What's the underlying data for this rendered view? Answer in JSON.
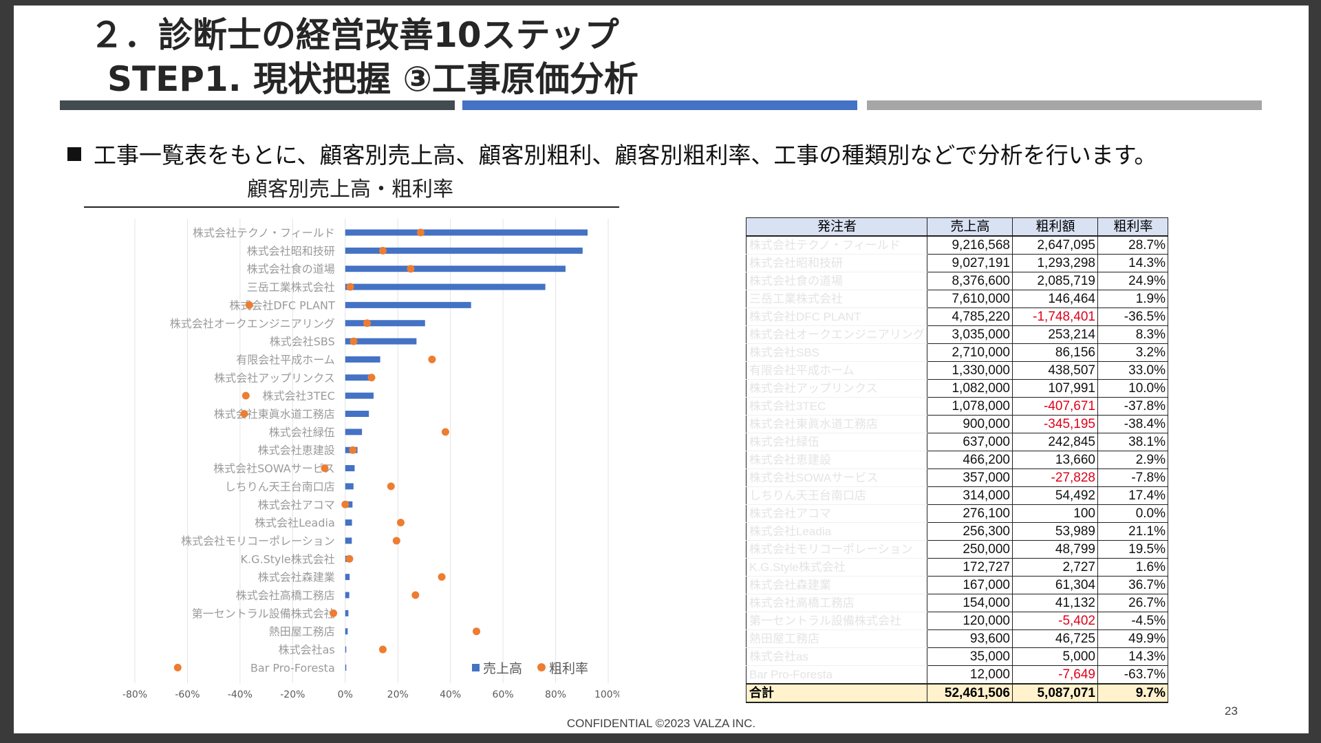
{
  "header": {
    "title_line1": "２．診断士の経営改善10ステップ",
    "title_line2": "STEP1. 現状把握 ③工事原価分析"
  },
  "colors": {
    "bar_dark": "#414b50",
    "bar_blue": "#4472c4",
    "bar_gray": "#a6a6a6",
    "sales_series": "#4472c4",
    "margin_series": "#ed7d31",
    "negative_value": "#e0001a",
    "total_row": "#fff2cc",
    "table_header": "#d9e2f3"
  },
  "bullet": {
    "icon": "square-bullet-icon",
    "text": "工事一覧表をもとに、顧客別売上高、顧客別粗利、顧客別粗利率、工事の種類別などで分析を行います。"
  },
  "chart_data": {
    "type": "bar",
    "orientation": "horizontal",
    "title": "顧客別売上高・粗利率",
    "categories": [
      "株式会社テクノ・フィールド",
      "株式会社昭和技研",
      "株式会社食の道場",
      "三岳工業株式会社",
      "株式会社DFC PLANT",
      "株式会社オークエンジニアリング",
      "株式会社SBS",
      "有限会社平成ホーム",
      "株式会社アップリンクス",
      "株式会社3TEC",
      "株式会社東眞水道工務店",
      "株式会社緑伍",
      "株式会社恵建設",
      "株式会社SOWAサービス",
      "しちりん天王台南口店",
      "株式会社アコマ",
      "株式会社Leadia",
      "株式会社モリコーポレーション",
      "K.G.Style株式会社",
      "株式会社森建業",
      "株式会社高橋工務店",
      "第一セントラル設備株式会社",
      "熱田屋工務店",
      "株式会社as",
      "Bar Pro-Foresta"
    ],
    "series": [
      {
        "name": "売上高",
        "type": "bar",
        "values": [
          9216568,
          9027191,
          8376600,
          7610000,
          4785220,
          3035000,
          2710000,
          1330000,
          1082000,
          1078000,
          900000,
          637000,
          466200,
          357000,
          314000,
          276100,
          256300,
          250000,
          172727,
          167000,
          154000,
          120000,
          93600,
          35000,
          12000
        ]
      },
      {
        "name": "粗利率",
        "type": "scatter",
        "values": [
          28.7,
          14.3,
          24.9,
          1.9,
          -36.5,
          8.3,
          3.2,
          33.0,
          10.0,
          -37.8,
          -38.4,
          38.1,
          2.9,
          -7.8,
          17.4,
          0.0,
          21.1,
          19.5,
          1.6,
          36.7,
          26.7,
          -4.5,
          49.9,
          14.3,
          -63.7
        ]
      }
    ],
    "x_axis": {
      "ticks": [
        "-80%",
        "-60%",
        "-40%",
        "-20%",
        "0%",
        "20%",
        "40%",
        "60%",
        "80%",
        "100%"
      ],
      "range_percent": [
        -80,
        100
      ]
    },
    "legend": {
      "position": "bottom-right",
      "items": [
        "売上高",
        "粗利率"
      ]
    },
    "grid": true
  },
  "table": {
    "headers": [
      "発注者",
      "売上高",
      "粗利額",
      "粗利率"
    ],
    "rows": [
      [
        "株式会社テクノ・フィールド",
        "9,216,568",
        "2,647,095",
        "28.7%"
      ],
      [
        "株式会社昭和技研",
        "9,027,191",
        "1,293,298",
        "14.3%"
      ],
      [
        "株式会社食の道場",
        "8,376,600",
        "2,085,719",
        "24.9%"
      ],
      [
        "三岳工業株式会社",
        "7,610,000",
        "146,464",
        "1.9%"
      ],
      [
        "株式会社DFC PLANT",
        "4,785,220",
        "-1,748,401",
        "-36.5%"
      ],
      [
        "株式会社オークエンジニアリング",
        "3,035,000",
        "253,214",
        "8.3%"
      ],
      [
        "株式会社SBS",
        "2,710,000",
        "86,156",
        "3.2%"
      ],
      [
        "有限会社平成ホーム",
        "1,330,000",
        "438,507",
        "33.0%"
      ],
      [
        "株式会社アップリンクス",
        "1,082,000",
        "107,991",
        "10.0%"
      ],
      [
        "株式会社3TEC",
        "1,078,000",
        "-407,671",
        "-37.8%"
      ],
      [
        "株式会社東眞水道工務店",
        "900,000",
        "-345,195",
        "-38.4%"
      ],
      [
        "株式会社緑伍",
        "637,000",
        "242,845",
        "38.1%"
      ],
      [
        "株式会社恵建設",
        "466,200",
        "13,660",
        "2.9%"
      ],
      [
        "株式会社SOWAサービス",
        "357,000",
        "-27,828",
        "-7.8%"
      ],
      [
        "しちりん天王台南口店",
        "314,000",
        "54,492",
        "17.4%"
      ],
      [
        "株式会社アコマ",
        "276,100",
        "100",
        "0.0%"
      ],
      [
        "株式会社Leadia",
        "256,300",
        "53,989",
        "21.1%"
      ],
      [
        "株式会社モリコーポレーション",
        "250,000",
        "48,799",
        "19.5%"
      ],
      [
        "K.G.Style株式会社",
        "172,727",
        "2,727",
        "1.6%"
      ],
      [
        "株式会社森建業",
        "167,000",
        "61,304",
        "36.7%"
      ],
      [
        "株式会社高橋工務店",
        "154,000",
        "41,132",
        "26.7%"
      ],
      [
        "第一セントラル設備株式会社",
        "120,000",
        "-5,402",
        "-4.5%"
      ],
      [
        "熱田屋工務店",
        "93,600",
        "46,725",
        "49.9%"
      ],
      [
        "株式会社as",
        "35,000",
        "5,000",
        "14.3%"
      ],
      [
        "Bar Pro-Foresta",
        "12,000",
        "-7,649",
        "-63.7%"
      ]
    ],
    "total": [
      "合計",
      "52,461,506",
      "5,087,071",
      "9.7%"
    ]
  },
  "footer": {
    "confidential": "CONFIDENTIAL ©2023 VALZA INC.",
    "page_number": "23"
  }
}
